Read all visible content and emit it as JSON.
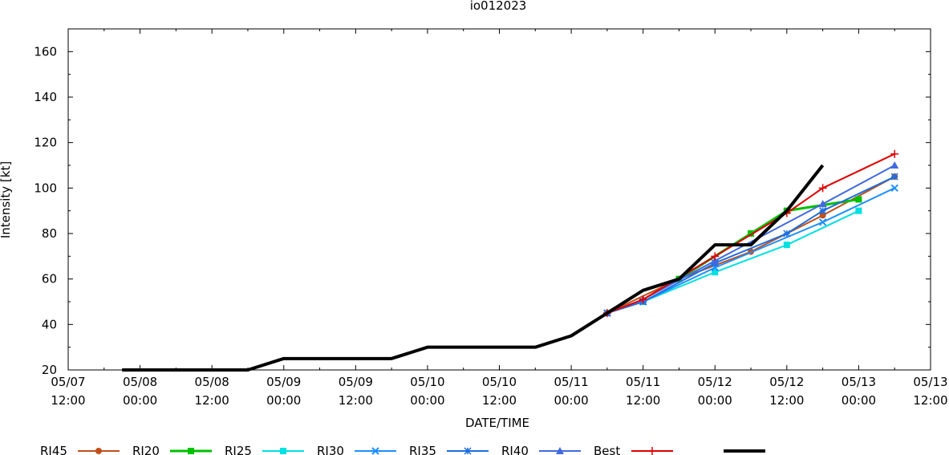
{
  "chart_data": {
    "type": "line",
    "title": "io012023",
    "xlabel": "DATE/TIME",
    "ylabel": "Intensity [kt]",
    "ylim": [
      20,
      170
    ],
    "yticks": [
      20,
      40,
      60,
      80,
      100,
      120,
      140,
      160
    ],
    "xlim": [
      "05/07 12:00",
      "05/13 12:00"
    ],
    "xticks": [
      {
        "date": "05/07",
        "time": "12:00"
      },
      {
        "date": "05/08",
        "time": "00:00"
      },
      {
        "date": "05/08",
        "time": "12:00"
      },
      {
        "date": "05/09",
        "time": "00:00"
      },
      {
        "date": "05/09",
        "time": "12:00"
      },
      {
        "date": "05/10",
        "time": "00:00"
      },
      {
        "date": "05/10",
        "time": "12:00"
      },
      {
        "date": "05/11",
        "time": "00:00"
      },
      {
        "date": "05/11",
        "time": "12:00"
      },
      {
        "date": "05/12",
        "time": "00:00"
      },
      {
        "date": "05/12",
        "time": "12:00"
      },
      {
        "date": "05/13",
        "time": "00:00"
      },
      {
        "date": "05/13",
        "time": "12:00"
      }
    ],
    "grid": false,
    "legend_position": "bottom",
    "series": [
      {
        "name": "RI45",
        "color": "#c0501a",
        "marker": "circle",
        "width": 2,
        "x": [
          "05/11 06:00",
          "05/11 18:00",
          "05/12 06:00",
          "05/12 18:00",
          "05/13 06:00"
        ],
        "y": [
          45,
          60,
          72,
          88,
          105
        ]
      },
      {
        "name": "RI20",
        "color": "#00c000",
        "marker": "x-square",
        "width": 3,
        "x": [
          "05/11 18:00",
          "05/12 06:00",
          "05/12 12:00",
          "05/13 00:00"
        ],
        "y": [
          60,
          80,
          90,
          95
        ]
      },
      {
        "name": "RI25",
        "color": "#00e0e0",
        "marker": "square",
        "width": 2,
        "x": [
          "05/11 12:00",
          "05/12 00:00",
          "05/12 12:00",
          "05/13 00:00"
        ],
        "y": [
          50,
          63,
          75,
          90
        ]
      },
      {
        "name": "RI30",
        "color": "#1e90ff",
        "marker": "x",
        "width": 2,
        "x": [
          "05/11 06:00",
          "05/11 12:00",
          "05/12 00:00",
          "05/12 18:00",
          "05/13 06:00"
        ],
        "y": [
          45,
          50,
          65,
          85,
          100
        ]
      },
      {
        "name": "RI35",
        "color": "#1e6ee0",
        "marker": "star",
        "width": 2,
        "x": [
          "05/11 06:00",
          "05/11 12:00",
          "05/12 00:00",
          "05/12 12:00",
          "05/12 18:00",
          "05/13 06:00"
        ],
        "y": [
          45,
          50,
          67,
          80,
          90,
          105
        ]
      },
      {
        "name": "RI40",
        "color": "#4169e1",
        "marker": "triangle",
        "width": 2,
        "x": [
          "05/11 06:00",
          "05/11 12:00",
          "05/12 00:00",
          "05/12 18:00",
          "05/13 06:00"
        ],
        "y": [
          45,
          51,
          68,
          93,
          110
        ]
      },
      {
        "name": "Best",
        "color": "#e00000",
        "marker": "plus",
        "width": 2,
        "x": [
          "05/11 06:00",
          "05/11 12:00",
          "05/12 00:00",
          "05/12 12:00",
          "05/12 18:00",
          "05/13 06:00"
        ],
        "y": [
          45,
          51,
          70,
          89,
          100,
          115
        ]
      },
      {
        "name": "",
        "color": "#000000",
        "marker": "none",
        "width": 4,
        "x": [
          "05/07 21:00",
          "05/08 18:00",
          "05/09 00:00",
          "05/09 18:00",
          "05/10 00:00",
          "05/10 18:00",
          "05/11 00:00",
          "05/11 06:00",
          "05/11 12:00",
          "05/11 18:00",
          "05/12 00:00",
          "05/12 06:00",
          "05/12 12:00",
          "05/12 18:00"
        ],
        "y": [
          20,
          20,
          25,
          25,
          30,
          30,
          35,
          45,
          55,
          60,
          75,
          75,
          90,
          110
        ]
      }
    ]
  }
}
